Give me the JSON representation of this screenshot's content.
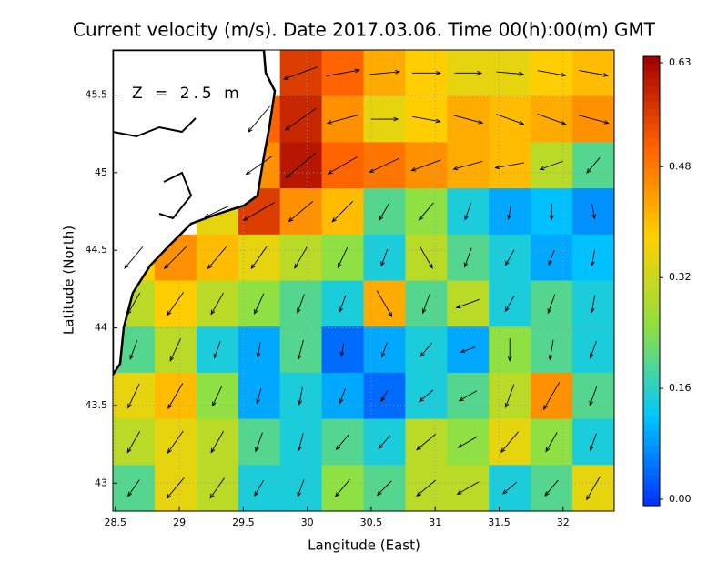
{
  "chart_data": {
    "type": "vector-field",
    "title": "Current velocity (m/s). Date 2017.03.06. Time 00(h):00(m) GMT",
    "annotation": "Z = 2.5 m",
    "xlabel": "Langitude (East)",
    "ylabel": "Latitude (North)",
    "xlim": [
      28.48,
      32.4
    ],
    "ylim": [
      42.82,
      45.79
    ],
    "xticks": [
      28.5,
      29,
      29.5,
      30,
      30.5,
      31,
      31.5,
      32
    ],
    "yticks": [
      43,
      43.5,
      44,
      44.5,
      45,
      45.5
    ],
    "clim": [
      0,
      0.63
    ],
    "cticks": [
      {
        "value": 0,
        "label": "0.00"
      },
      0.16,
      0.32,
      0.48,
      0.63
    ],
    "colorscale": [
      "#0030ff",
      "#00c8ff",
      "#90e040",
      "#ffd000",
      "#ff6000",
      "#a00000"
    ],
    "grid": true,
    "speed": [
      [
        null,
        null,
        null,
        null,
        0.55,
        0.5,
        0.42,
        0.38,
        0.35,
        0.35,
        0.38,
        0.4
      ],
      [
        null,
        null,
        null,
        0.5,
        0.58,
        0.45,
        0.35,
        0.38,
        0.42,
        0.4,
        0.42,
        0.45
      ],
      [
        null,
        null,
        null,
        0.45,
        0.6,
        0.5,
        0.48,
        0.45,
        0.42,
        0.4,
        0.3,
        0.2
      ],
      [
        null,
        null,
        0.35,
        0.55,
        0.45,
        0.4,
        0.2,
        0.25,
        0.15,
        0.1,
        0.12,
        0.08
      ],
      [
        0.38,
        0.45,
        0.4,
        0.35,
        0.3,
        0.25,
        0.15,
        0.3,
        0.2,
        0.15,
        0.1,
        0.12
      ],
      [
        0.3,
        0.38,
        0.3,
        0.25,
        0.2,
        0.15,
        0.42,
        0.2,
        0.3,
        0.15,
        0.2,
        0.15
      ],
      [
        0.2,
        0.3,
        0.15,
        0.1,
        0.2,
        0.05,
        0.1,
        0.15,
        0.1,
        0.25,
        0.2,
        0.15
      ],
      [
        0.35,
        0.4,
        0.25,
        0.1,
        0.15,
        0.1,
        0.05,
        0.15,
        0.2,
        0.3,
        0.45,
        0.2
      ],
      [
        0.3,
        0.35,
        0.3,
        0.2,
        0.15,
        0.2,
        0.15,
        0.3,
        0.25,
        0.35,
        0.25,
        0.15
      ],
      [
        0.2,
        0.35,
        0.3,
        0.15,
        0.15,
        0.25,
        0.2,
        0.3,
        0.3,
        0.15,
        0.2,
        0.35
      ]
    ],
    "direction": [
      [
        null,
        null,
        null,
        null,
        200,
        10,
        5,
        0,
        0,
        355,
        350,
        350
      ],
      [
        null,
        null,
        null,
        230,
        215,
        195,
        0,
        350,
        345,
        340,
        340,
        345
      ],
      [
        null,
        null,
        null,
        215,
        220,
        210,
        205,
        200,
        195,
        190,
        200,
        230
      ],
      [
        null,
        null,
        205,
        210,
        220,
        225,
        240,
        230,
        250,
        260,
        270,
        280
      ],
      [
        230,
        225,
        230,
        235,
        240,
        245,
        250,
        300,
        250,
        240,
        250,
        260
      ],
      [
        240,
        235,
        240,
        245,
        250,
        250,
        300,
        250,
        200,
        240,
        250,
        260
      ],
      [
        250,
        245,
        250,
        260,
        255,
        260,
        250,
        230,
        200,
        270,
        260,
        250
      ],
      [
        245,
        240,
        245,
        255,
        260,
        250,
        240,
        220,
        210,
        250,
        240,
        250
      ],
      [
        240,
        235,
        240,
        250,
        255,
        230,
        230,
        220,
        210,
        230,
        240,
        250
      ],
      [
        235,
        230,
        235,
        240,
        250,
        230,
        225,
        220,
        210,
        220,
        230,
        240
      ]
    ]
  }
}
